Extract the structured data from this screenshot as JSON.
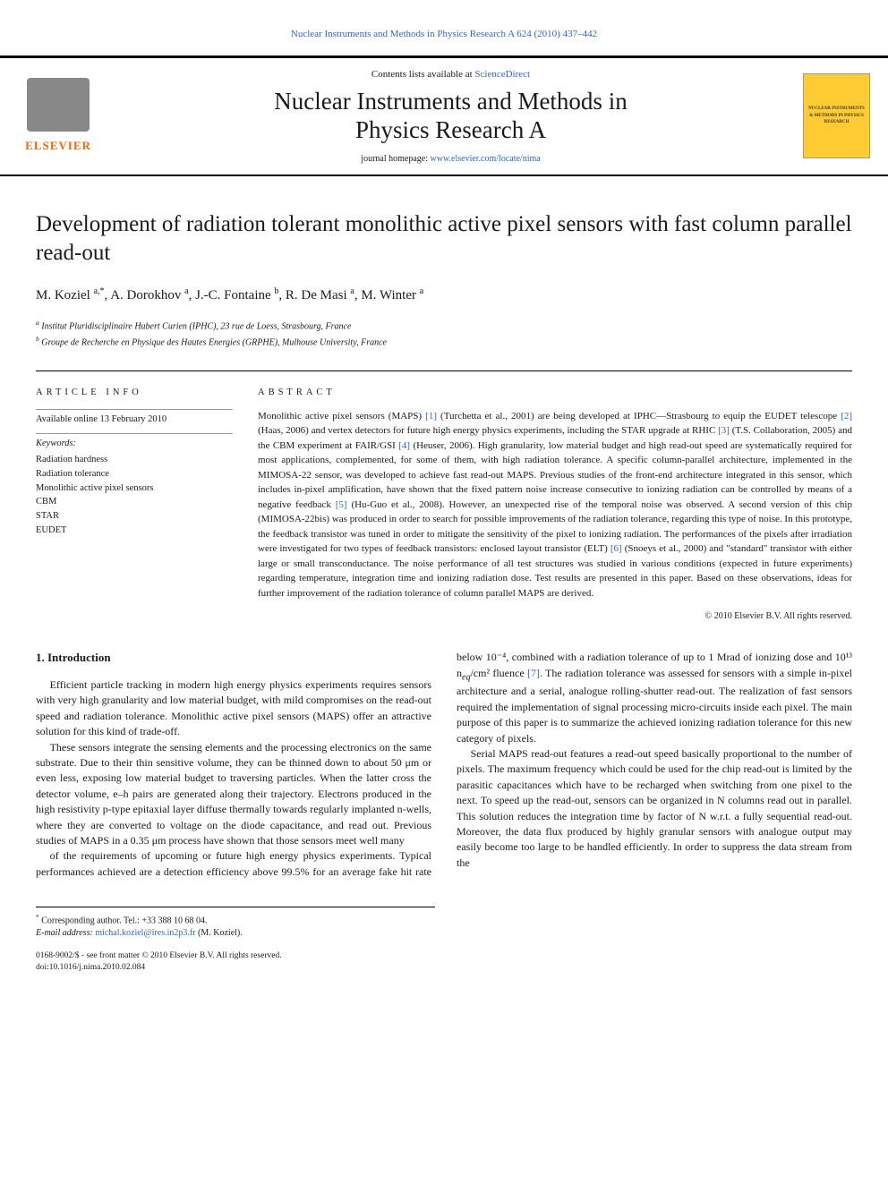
{
  "header": {
    "journal_ref": "Nuclear Instruments and Methods in Physics Research A 624 (2010) 437–442",
    "contents_prefix": "Contents lists available at ",
    "contents_link": "ScienceDirect",
    "journal_name_line1": "Nuclear Instruments and Methods in",
    "journal_name_line2": "Physics Research A",
    "homepage_prefix": "journal homepage: ",
    "homepage_url": "www.elsevier.com/locate/nima",
    "publisher_name": "ELSEVIER",
    "cover_text": "NUCLEAR INSTRUMENTS & METHODS IN PHYSICS RESEARCH"
  },
  "article": {
    "title": "Development of radiation tolerant monolithic active pixel sensors with fast column parallel read-out",
    "authors_html": "M. Koziel <sup>a,*</sup>, A. Dorokhov <sup>a</sup>, J.-C. Fontaine <sup>b</sup>, R. De Masi <sup>a</sup>, M. Winter <sup>a</sup>",
    "affiliations": {
      "a": "Institut Pluridisciplinaire Hubert Curien (IPHC), 23 rue de Loess, Strasbourg, France",
      "b": "Groupe de Recherche en Physique des Hautes Energies (GRPHE), Mulhouse University, France"
    }
  },
  "info": {
    "heading": "ARTICLE INFO",
    "online_date": "Available online 13 February 2010",
    "kw_label": "Keywords:",
    "keywords": [
      "Radiation hardness",
      "Radiation tolerance",
      "Monolithic active pixel sensors",
      "CBM",
      "STAR",
      "EUDET"
    ]
  },
  "abstract": {
    "heading": "ABSTRACT",
    "text": "Monolithic active pixel sensors (MAPS) [1] (Turchetta et al., 2001) are being developed at IPHC—Strasbourg to equip the EUDET telescope [2] (Haas, 2006) and vertex detectors for future high energy physics experiments, including the STAR upgrade at RHIC [3] (T.S. Collaboration, 2005) and the CBM experiment at FAIR/GSI [4] (Heuser, 2006). High granularity, low material budget and high read-out speed are systematically required for most applications, complemented, for some of them, with high radiation tolerance. A specific column-parallel architecture, implemented in the MIMOSA-22 sensor, was developed to achieve fast read-out MAPS. Previous studies of the front-end architecture integrated in this sensor, which includes in-pixel amplification, have shown that the fixed pattern noise increase consecutive to ionizing radiation can be controlled by means of a negative feedback [5] (Hu-Guo et al., 2008). However, an unexpected rise of the temporal noise was observed. A second version of this chip (MIMOSA-22bis) was produced in order to search for possible improvements of the radiation tolerance, regarding this type of noise. In this prototype, the feedback transistor was tuned in order to mitigate the sensitivity of the pixel to ionizing radiation. The performances of the pixels after irradiation were investigated for two types of feedback transistors: enclosed layout transistor (ELT) [6] (Snoeys et al., 2000) and \"standard\" transistor with either large or small transconductance. The noise performance of all test structures was studied in various conditions (expected in future experiments) regarding temperature, integration time and ionizing radiation dose. Test results are presented in this paper. Based on these observations, ideas for further improvement of the radiation tolerance of column parallel MAPS are derived.",
    "refs": [
      "[1]",
      "[2]",
      "[3]",
      "[4]",
      "[5]",
      "[6]"
    ],
    "copyright": "© 2010 Elsevier B.V. All rights reserved."
  },
  "body": {
    "section_number": "1.",
    "section_title": "Introduction",
    "p1": "Efficient particle tracking in modern high energy physics experiments requires sensors with very high granularity and low material budget, with mild compromises on the read-out speed and radiation tolerance. Monolithic active pixel sensors (MAPS) offer an attractive solution for this kind of trade-off.",
    "p2": "These sensors integrate the sensing elements and the processing electronics on the same substrate. Due to their thin sensitive volume, they can be thinned down to about 50 μm or even less, exposing low material budget to traversing particles. When the latter cross the detector volume, e–h pairs are generated along their trajectory. Electrons produced in the high resistivity p-type epitaxial layer diffuse thermally towards regularly implanted n-wells, where they are converted to voltage on the diode capacitance, and read out. Previous studies of MAPS in a 0.35 μm process have shown that those sensors meet well many",
    "p3_pre": "of the requirements of upcoming or future high energy physics experiments. Typical performances achieved are a detection efficiency above 99.5% for an average fake hit rate below 10⁻⁴, combined with a radiation tolerance of up to 1 Mrad of ionizing dose and 10¹³ n",
    "p3_sub": "eq",
    "p3_post": "/cm² fluence [7]. The radiation tolerance was assessed for sensors with a simple in-pixel architecture and a serial, analogue rolling-shutter read-out. The realization of fast sensors required the implementation of signal processing micro-circuits inside each pixel. The main purpose of this paper is to summarize the achieved ionizing radiation tolerance for this new category of pixels.",
    "p4": "Serial MAPS read-out features a read-out speed basically proportional to the number of pixels. The maximum frequency which could be used for the chip read-out is limited by the parasitic capacitances which have to be recharged when switching from one pixel to the next. To speed up the read-out, sensors can be organized in N columns read out in parallel. This solution reduces the integration time by factor of N w.r.t. a fully sequential read-out. Moreover, the data flux produced by highly granular sensors with analogue output may easily become too large to be handled efficiently. In order to suppress the data stream from the",
    "ref7": "[7]"
  },
  "footnote": {
    "marker": "*",
    "corr_text": "Corresponding author. Tel.: +33 388 10 68 04.",
    "email_label": "E-mail address:",
    "email": "michal.koziel@ires.in2p3.fr",
    "email_suffix": "(M. Koziel)."
  },
  "footer": {
    "line1": "0168-9002/$ - see front matter © 2010 Elsevier B.V. All rights reserved.",
    "line2": "doi:10.1016/j.nima.2010.02.084"
  },
  "colors": {
    "link": "#3366cc",
    "elsevier_orange": "#ff6600",
    "cover_yellow": "#ffcc33",
    "text": "#1a1a1a",
    "rule": "#000000"
  }
}
